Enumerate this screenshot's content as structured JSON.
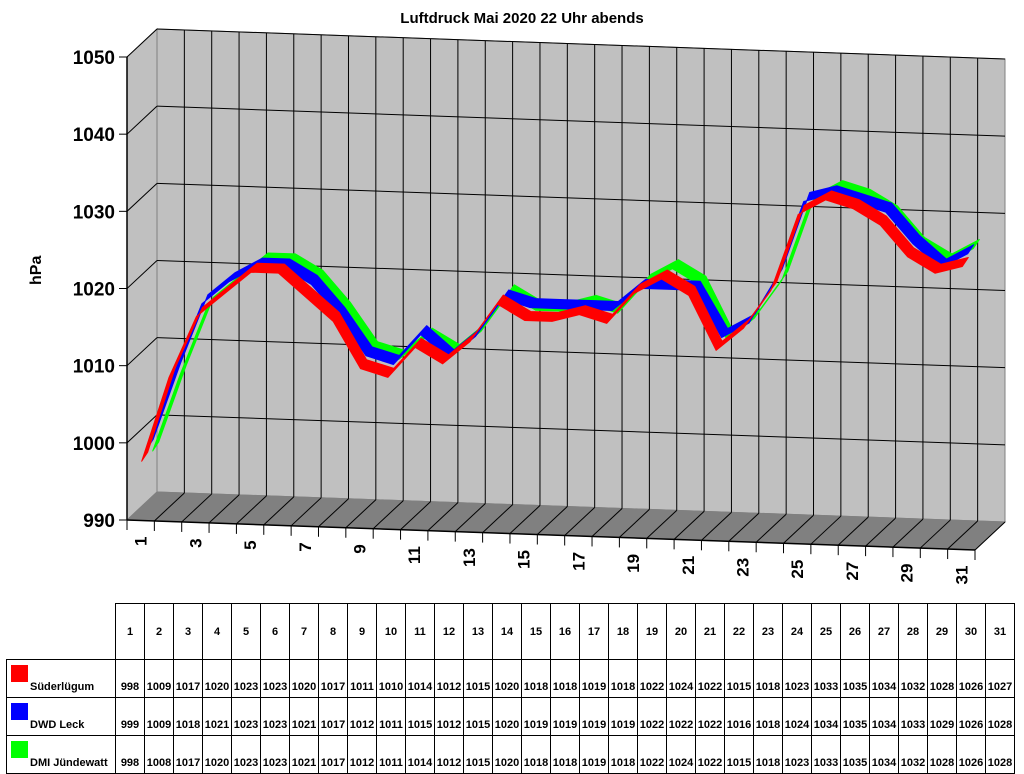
{
  "chart_data": {
    "type": "line",
    "style": "3d-ribbon",
    "title": "Luftdruck Mai 2020 22 Uhr abends",
    "xlabel": "",
    "ylabel": "hPa",
    "ylim": [
      990,
      1050
    ],
    "yticks": [
      990,
      1000,
      1010,
      1020,
      1030,
      1040,
      1050
    ],
    "grid": true,
    "legend_position": "data-table-below",
    "x": [
      1,
      2,
      3,
      4,
      5,
      6,
      7,
      8,
      9,
      10,
      11,
      12,
      13,
      14,
      15,
      16,
      17,
      18,
      19,
      20,
      21,
      22,
      23,
      24,
      25,
      26,
      27,
      28,
      29,
      30,
      31
    ],
    "xtick_labels_shown": [
      "1",
      "3",
      "5",
      "7",
      "9",
      "11",
      "13",
      "15",
      "17",
      "19",
      "21",
      "23",
      "25",
      "27",
      "29",
      "31"
    ],
    "series": [
      {
        "name": "Süderlügum",
        "color": "#ff0000",
        "values": [
          998,
          1009,
          1017,
          1020,
          1023,
          1023,
          1020,
          1017,
          1011,
          1010,
          1014,
          1012,
          1015,
          1020,
          1018,
          1018,
          1019,
          1018,
          1022,
          1024,
          1022,
          1015,
          1018,
          1023,
          1033,
          1035,
          1034,
          1032,
          1028,
          1026,
          1027
        ]
      },
      {
        "name": "DWD Leck",
        "color": "#0000ff",
        "values": [
          999,
          1009,
          1018,
          1021,
          1023,
          1023,
          1021,
          1017,
          1012,
          1011,
          1015,
          1012,
          1015,
          1020,
          1019,
          1019,
          1019,
          1019,
          1022,
          1022,
          1022,
          1016,
          1018,
          1024,
          1034,
          1035,
          1034,
          1033,
          1029,
          1026,
          1028
        ]
      },
      {
        "name": "DMI Jündewatt",
        "color": "#00ff00",
        "values": [
          998,
          1008,
          1017,
          1020,
          1023,
          1023,
          1021,
          1017,
          1012,
          1011,
          1014,
          1012,
          1015,
          1020,
          1018,
          1018,
          1019,
          1018,
          1022,
          1024,
          1022,
          1015,
          1018,
          1023,
          1033,
          1035,
          1034,
          1032,
          1028,
          1026,
          1028
        ]
      }
    ]
  },
  "page": {
    "title": "Luftdruck Mai 2020 22 Uhr abends",
    "ylabel": "hPa"
  },
  "colors": {
    "wall": "#c0c0c0",
    "floor": "#808080",
    "grid": "#000000"
  }
}
